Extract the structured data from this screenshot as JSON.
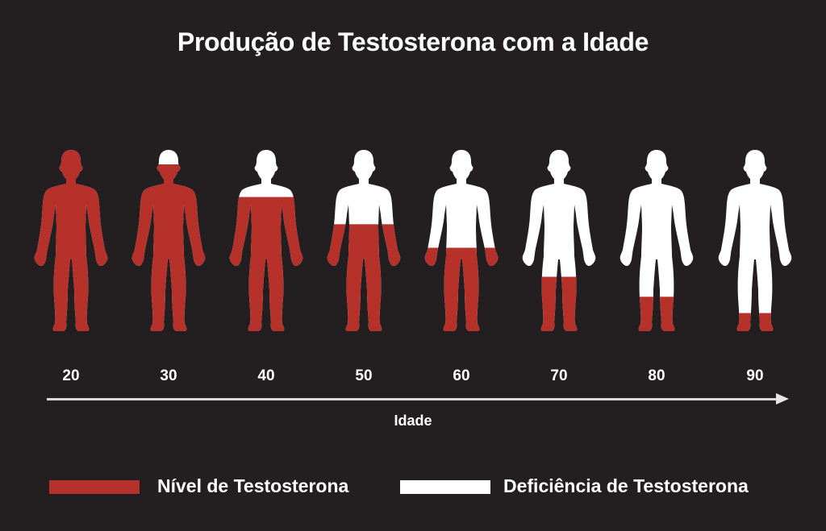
{
  "title": "Produção de Testosterona com a Idade",
  "colors": {
    "background": "#231f20",
    "level": "#b5312a",
    "deficiency": "#ffffff"
  },
  "axis": {
    "label": "Idade"
  },
  "legend": [
    {
      "label": "Nível de Testosterona",
      "color": "#b5312a"
    },
    {
      "label": "Deficiência de Testosterona",
      "color": "#ffffff"
    }
  ],
  "chart_data": {
    "type": "bar",
    "title": "Produção de Testosterona com a Idade",
    "xlabel": "Idade",
    "ylabel": "",
    "categories": [
      "20",
      "30",
      "40",
      "50",
      "60",
      "70",
      "80",
      "90"
    ],
    "series": [
      {
        "name": "Nível de Testosterona",
        "values": [
          100,
          92,
          74,
          59,
          46,
          30,
          19,
          10
        ]
      },
      {
        "name": "Deficiência de Testosterona",
        "values": [
          0,
          8,
          26,
          41,
          54,
          70,
          81,
          90
        ]
      }
    ],
    "ylim": [
      0,
      100
    ],
    "legend_position": "bottom",
    "grid": false,
    "note": "Values are estimated fill fractions (%) of human silhouettes, red from feet upward"
  }
}
